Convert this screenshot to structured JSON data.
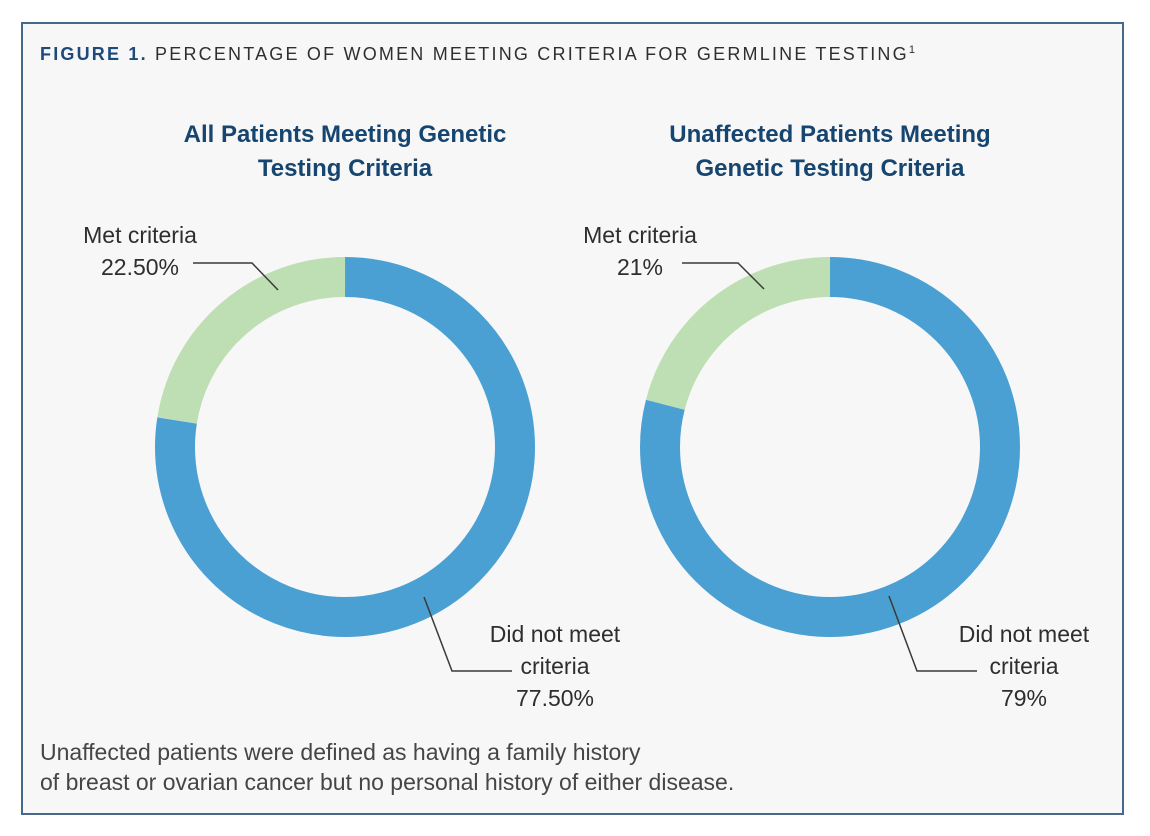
{
  "figure": {
    "label": "FIGURE 1.",
    "title": " PERCENTAGE OF WOMEN MEETING CRITERIA FOR GERMLINE TESTING",
    "superscript": "1"
  },
  "footnote": {
    "line1": "Unaffected patients were defined as having a family history",
    "line2": "of breast or ovarian cancer but no personal history of either disease."
  },
  "colors": {
    "met_green": "#bedfb3",
    "not_met_blue": "#4aa0d3",
    "panel_border": "#46688b",
    "panel_background": "#f7f7f8",
    "heading_navy": "#16456f",
    "label_text": "#2e2e2e"
  },
  "chart_data": [
    {
      "type": "pie",
      "donut": true,
      "title": "All Patients Meeting Genetic Testing Criteria",
      "title_lines": {
        "line1": "All Patients Meeting Genetic",
        "line2": "Testing Criteria"
      },
      "start": "top",
      "direction": "clockwise",
      "slices": [
        {
          "label": "Did not meet criteria",
          "value": 77.5,
          "display": "77.50%",
          "color": "#4aa0d3"
        },
        {
          "label": "Met criteria",
          "value": 22.5,
          "display": "22.50%",
          "color": "#bedfb3"
        }
      ],
      "callouts": {
        "met": {
          "line1": "Met criteria",
          "value": "22.50%"
        },
        "not_met": {
          "line1": "Did not meet",
          "line2": "criteria",
          "value": "77.50%"
        }
      }
    },
    {
      "type": "pie",
      "donut": true,
      "title": "Unaffected Patients Meeting Genetic Testing Criteria",
      "title_lines": {
        "line1": "Unaffected Patients Meeting",
        "line2": "Genetic Testing Criteria"
      },
      "start": "top",
      "direction": "clockwise",
      "slices": [
        {
          "label": "Did not meet criteria",
          "value": 79,
          "display": "79%",
          "color": "#4aa0d3"
        },
        {
          "label": "Met criteria",
          "value": 21,
          "display": "21%",
          "color": "#bedfb3"
        }
      ],
      "callouts": {
        "met": {
          "line1": "Met criteria",
          "value": "21%"
        },
        "not_met": {
          "line1": "Did not meet",
          "line2": "criteria",
          "value": "79%"
        }
      }
    }
  ]
}
